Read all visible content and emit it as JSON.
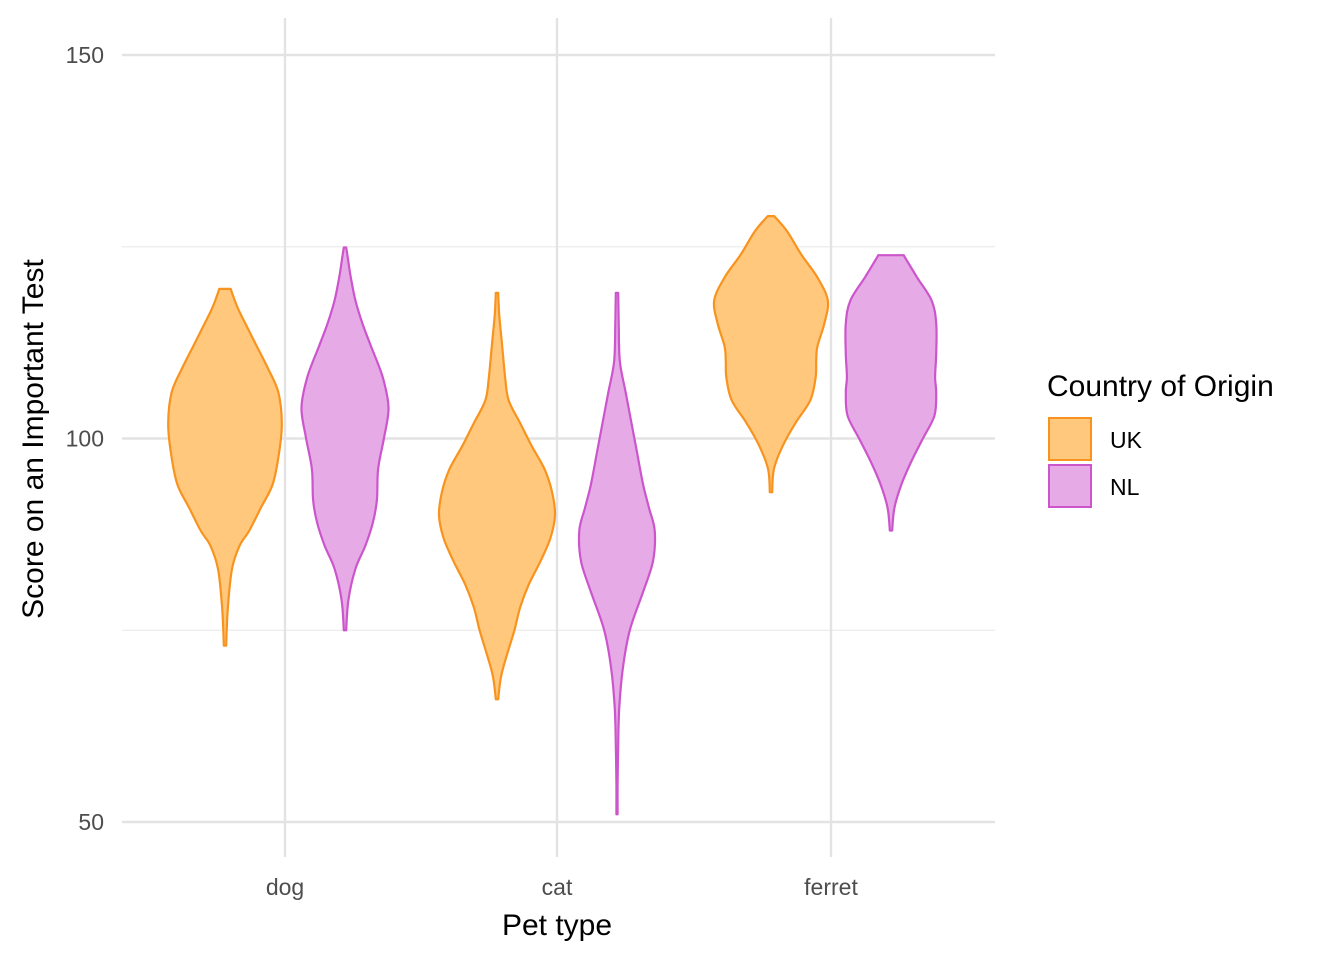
{
  "chart_data": {
    "type": "violin",
    "xlabel": "Pet type",
    "ylabel": "Score on an Important Test",
    "ylim": [
      45,
      155
    ],
    "yticks": [
      50,
      100,
      150
    ],
    "categories": [
      "dog",
      "cat",
      "ferret"
    ],
    "grid": true,
    "legend": {
      "title": "Country of Origin",
      "position": "right"
    },
    "colors": {
      "UK": {
        "fill": "#ffc87d",
        "stroke": "#f7931e"
      },
      "NL": {
        "fill": "#e6aae6",
        "stroke": "#cc55cc"
      }
    },
    "series": [
      {
        "name": "UK",
        "violins": [
          {
            "category": "dog",
            "profile": [
              [
                73,
                0.02
              ],
              [
                78,
                0.05
              ],
              [
                83,
                0.12
              ],
              [
                86,
                0.25
              ],
              [
                88,
                0.42
              ],
              [
                91,
                0.62
              ],
              [
                94,
                0.82
              ],
              [
                98,
                0.93
              ],
              [
                102,
                0.98
              ],
              [
                106,
                0.92
              ],
              [
                109,
                0.75
              ],
              [
                112,
                0.55
              ],
              [
                115,
                0.35
              ],
              [
                117,
                0.22
              ],
              [
                119,
                0.12
              ],
              [
                119.5,
                0.1
              ]
            ]
          },
          {
            "category": "cat",
            "profile": [
              [
                66,
                0.02
              ],
              [
                69,
                0.07
              ],
              [
                72,
                0.18
              ],
              [
                75,
                0.3
              ],
              [
                78,
                0.4
              ],
              [
                81,
                0.55
              ],
              [
                84,
                0.75
              ],
              [
                87,
                0.92
              ],
              [
                90,
                1.0
              ],
              [
                93,
                0.95
              ],
              [
                96,
                0.82
              ],
              [
                99,
                0.6
              ],
              [
                102,
                0.4
              ],
              [
                105,
                0.2
              ],
              [
                108,
                0.14
              ],
              [
                112,
                0.09
              ],
              [
                116,
                0.04
              ],
              [
                119,
                0.02
              ]
            ]
          },
          {
            "category": "ferret",
            "profile": [
              [
                93,
                0.02
              ],
              [
                96,
                0.05
              ],
              [
                99,
                0.2
              ],
              [
                102,
                0.42
              ],
              [
                105,
                0.68
              ],
              [
                108,
                0.77
              ],
              [
                110,
                0.78
              ],
              [
                112,
                0.8
              ],
              [
                115,
                0.92
              ],
              [
                118,
                0.98
              ],
              [
                121,
                0.8
              ],
              [
                124,
                0.52
              ],
              [
                127,
                0.28
              ],
              [
                128.8,
                0.08
              ],
              [
                129,
                0.05
              ]
            ]
          }
        ]
      },
      {
        "name": "NL",
        "violins": [
          {
            "category": "dog",
            "profile": [
              [
                75,
                0.02
              ],
              [
                79,
                0.06
              ],
              [
                83,
                0.18
              ],
              [
                86,
                0.35
              ],
              [
                89,
                0.48
              ],
              [
                92,
                0.55
              ],
              [
                96,
                0.57
              ],
              [
                100,
                0.67
              ],
              [
                104,
                0.75
              ],
              [
                108,
                0.65
              ],
              [
                112,
                0.45
              ],
              [
                115,
                0.3
              ],
              [
                118,
                0.18
              ],
              [
                121,
                0.1
              ],
              [
                124,
                0.04
              ],
              [
                124.9,
                0.02
              ]
            ]
          },
          {
            "category": "cat",
            "profile": [
              [
                51,
                0.01
              ],
              [
                55,
                0.01
              ],
              [
                60,
                0.02
              ],
              [
                65,
                0.04
              ],
              [
                70,
                0.1
              ],
              [
                75,
                0.22
              ],
              [
                80,
                0.45
              ],
              [
                84,
                0.62
              ],
              [
                88,
                0.65
              ],
              [
                91,
                0.55
              ],
              [
                94,
                0.45
              ],
              [
                98,
                0.35
              ],
              [
                102,
                0.25
              ],
              [
                106,
                0.15
              ],
              [
                110,
                0.05
              ],
              [
                115,
                0.03
              ],
              [
                119,
                0.02
              ]
            ]
          },
          {
            "category": "ferret",
            "profile": [
              [
                88,
                0.02
              ],
              [
                91,
                0.06
              ],
              [
                94,
                0.18
              ],
              [
                97,
                0.35
              ],
              [
                100,
                0.55
              ],
              [
                103,
                0.75
              ],
              [
                106,
                0.78
              ],
              [
                108,
                0.76
              ],
              [
                111,
                0.78
              ],
              [
                115,
                0.78
              ],
              [
                118,
                0.7
              ],
              [
                121,
                0.45
              ],
              [
                123.5,
                0.25
              ],
              [
                123.9,
                0.22
              ]
            ]
          }
        ]
      }
    ]
  }
}
